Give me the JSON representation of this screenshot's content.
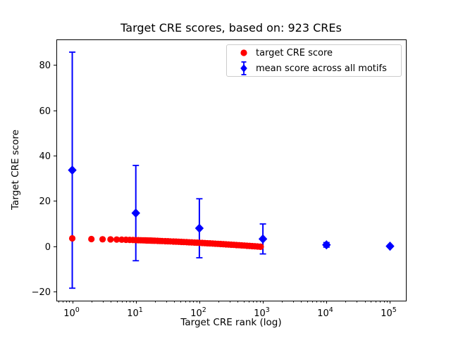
{
  "colors": {
    "target": "#ff0000",
    "mean": "#0000ff",
    "axis": "#000000",
    "legend_border": "#cccccc",
    "background": "#ffffff"
  },
  "chart_data": {
    "type": "scatter",
    "title": "Target CRE scores, based on: 923 CREs",
    "xlabel": "Target CRE rank (log)",
    "ylabel": "Target CRE score",
    "x_scale": "log",
    "xlim_log10": [
      -0.25,
      5.25
    ],
    "ylim": [
      -23.9,
      91.2
    ],
    "grid": false,
    "legend_position": "upper right",
    "n_cres": 923,
    "y_ticks": [
      {
        "value": -20,
        "label": "−20"
      },
      {
        "value": 0,
        "label": "0"
      },
      {
        "value": 20,
        "label": "20"
      },
      {
        "value": 40,
        "label": "40"
      },
      {
        "value": 60,
        "label": "60"
      },
      {
        "value": 80,
        "label": "80"
      }
    ],
    "x_ticks": [
      {
        "value": 1,
        "base": "10",
        "exp": "0"
      },
      {
        "value": 10,
        "base": "10",
        "exp": "1"
      },
      {
        "value": 100,
        "base": "10",
        "exp": "2"
      },
      {
        "value": 1000,
        "base": "10",
        "exp": "3"
      },
      {
        "value": 10000,
        "base": "10",
        "exp": "4"
      },
      {
        "value": 100000,
        "base": "10",
        "exp": "5"
      }
    ],
    "series": [
      {
        "name": "target CRE score",
        "marker": "circle",
        "color": "#ff0000",
        "total_points_depicted": 923,
        "points": [
          [
            1,
            3.55
          ],
          [
            2,
            3.25
          ],
          [
            3,
            3.15
          ],
          [
            4,
            3.11
          ],
          [
            5,
            3.04
          ],
          [
            6,
            2.99
          ],
          [
            7,
            2.93
          ],
          [
            8,
            2.88
          ],
          [
            9,
            2.84
          ],
          [
            10,
            2.8
          ],
          [
            11,
            2.76
          ],
          [
            12,
            2.73
          ],
          [
            13,
            2.69
          ],
          [
            14,
            2.66
          ],
          [
            15,
            2.63
          ],
          [
            16,
            2.6
          ],
          [
            17,
            2.58
          ],
          [
            18,
            2.55
          ],
          [
            19,
            2.53
          ],
          [
            20,
            2.5
          ],
          [
            22,
            2.46
          ],
          [
            24,
            2.41
          ],
          [
            26,
            2.37
          ],
          [
            29,
            2.32
          ],
          [
            32,
            2.27
          ],
          [
            35,
            2.22
          ],
          [
            39,
            2.16
          ],
          [
            43,
            2.11
          ],
          [
            47,
            2.06
          ],
          [
            52,
            2.0
          ],
          [
            57,
            1.95
          ],
          [
            63,
            1.89
          ],
          [
            69,
            1.83
          ],
          [
            76,
            1.77
          ],
          [
            84,
            1.71
          ],
          [
            92,
            1.65
          ],
          [
            101,
            1.59
          ],
          [
            111,
            1.53
          ],
          [
            122,
            1.47
          ],
          [
            134,
            1.4
          ],
          [
            147,
            1.34
          ],
          [
            162,
            1.27
          ],
          [
            178,
            1.21
          ],
          [
            196,
            1.14
          ],
          [
            216,
            1.07
          ],
          [
            238,
            0.99
          ],
          [
            262,
            0.92
          ],
          [
            288,
            0.85
          ],
          [
            317,
            0.77
          ],
          [
            349,
            0.7
          ],
          [
            384,
            0.62
          ],
          [
            422,
            0.55
          ],
          [
            464,
            0.47
          ],
          [
            510,
            0.39
          ],
          [
            561,
            0.31
          ],
          [
            617,
            0.23
          ],
          [
            679,
            0.14
          ],
          [
            747,
            0.06
          ],
          [
            822,
            -0.02
          ],
          [
            904,
            -0.11
          ],
          [
            923,
            -0.13
          ]
        ]
      },
      {
        "name": "mean score across all motifs",
        "marker": "diamond",
        "color": "#0000ff",
        "error_bars": true,
        "points_with_error": [
          [
            1,
            33.6,
            52.0
          ],
          [
            10,
            14.7,
            21.0
          ],
          [
            100,
            8.0,
            13.0
          ],
          [
            1000,
            3.3,
            6.6
          ],
          [
            10000,
            0.7,
            1.0
          ],
          [
            100000,
            0.1,
            0.4
          ]
        ]
      }
    ]
  }
}
